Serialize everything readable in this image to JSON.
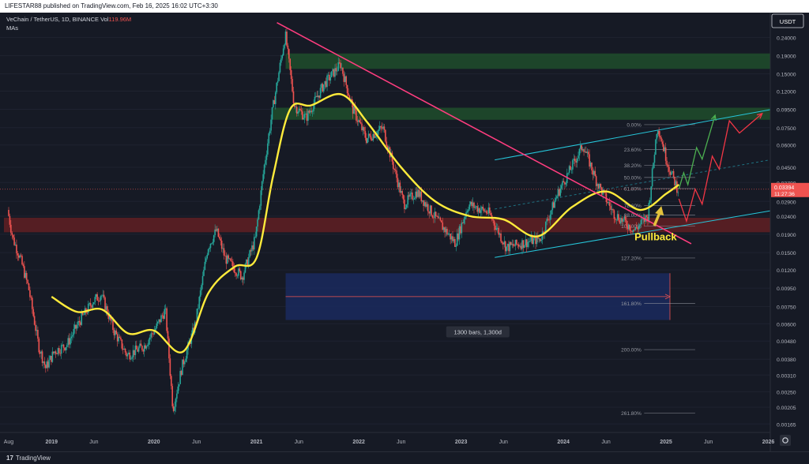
{
  "header": {
    "publisher_line": "LIFESTAR88 published on TradingView.com, Feb 16, 2025 16:02 UTC+3:30"
  },
  "legend": {
    "symbol_line": "VeChain / TetherUS, 1D, BINANCE",
    "volume_label": "Vol",
    "volume_value": "119.96M",
    "indicator_line": "MAs"
  },
  "currency_badge": "USDT",
  "footer": {
    "brand": "TradingView",
    "logo_glyph": "17"
  },
  "colors": {
    "background": "#161a25",
    "candle_up": "#26a69a",
    "candle_down": "#ef5350",
    "ma_line": "#ffeb3b",
    "trendline": "#ff3d7f",
    "channel": "#26c6da",
    "supply_zone": "#1e4d2b",
    "demand_zone": "#5c1f24",
    "measure_box": "#1a2a5e",
    "price_badge": "#ef5350",
    "arrow_green": "#4caf50",
    "arrow_red": "#f23645",
    "pullback_text": "#ffeb3b"
  },
  "chart_data": {
    "type": "candlestick",
    "title": "VeChain / TetherUS, 1D, BINANCE",
    "y_scale": "log",
    "x_tick_labels": [
      "Aug",
      "2019",
      "Jun",
      "2020",
      "Jun",
      "2021",
      "Jun",
      "2022",
      "Jun",
      "2023",
      "Jun",
      "2024",
      "Jun",
      "2025",
      "Jun",
      "2026"
    ],
    "y_tick_labels": [
      "0.24000",
      "0.19000",
      "0.15000",
      "0.12000",
      "0.09500",
      "0.07500",
      "0.06000",
      "0.04500",
      "0.03700",
      "0.02900",
      "0.02400",
      "0.01900",
      "0.01500",
      "0.01200",
      "0.00950",
      "0.00750",
      "0.00600",
      "0.00480",
      "0.00380",
      "0.00310",
      "0.00250",
      "0.00205",
      "0.00165"
    ],
    "y_tick_values": [
      0.24,
      0.19,
      0.15,
      0.12,
      0.095,
      0.075,
      0.06,
      0.045,
      0.037,
      0.029,
      0.024,
      0.019,
      0.015,
      0.012,
      0.0095,
      0.0075,
      0.006,
      0.0048,
      0.0038,
      0.0031,
      0.0025,
      0.00205,
      0.00165
    ],
    "last_price": {
      "label": "0.03394",
      "countdown": "11:27:36",
      "value": 0.03394
    },
    "price_path": [
      {
        "date": "2018-08-01",
        "price": 0.026
      },
      {
        "date": "2018-08-20",
        "price": 0.018
      },
      {
        "date": "2018-09-15",
        "price": 0.014
      },
      {
        "date": "2018-10-15",
        "price": 0.0095
      },
      {
        "date": "2018-11-20",
        "price": 0.0045
      },
      {
        "date": "2018-12-15",
        "price": 0.0034
      },
      {
        "date": "2019-01-15",
        "price": 0.0042
      },
      {
        "date": "2019-03-01",
        "price": 0.0046
      },
      {
        "date": "2019-04-15",
        "price": 0.0062
      },
      {
        "date": "2019-06-01",
        "price": 0.008
      },
      {
        "date": "2019-07-01",
        "price": 0.0088
      },
      {
        "date": "2019-08-15",
        "price": 0.0055
      },
      {
        "date": "2019-10-01",
        "price": 0.004
      },
      {
        "date": "2019-12-01",
        "price": 0.0045
      },
      {
        "date": "2020-01-15",
        "price": 0.0058
      },
      {
        "date": "2020-02-15",
        "price": 0.0072
      },
      {
        "date": "2020-03-13",
        "price": 0.002
      },
      {
        "date": "2020-04-15",
        "price": 0.0035
      },
      {
        "date": "2020-06-01",
        "price": 0.006
      },
      {
        "date": "2020-07-15",
        "price": 0.016
      },
      {
        "date": "2020-08-15",
        "price": 0.02
      },
      {
        "date": "2020-09-15",
        "price": 0.014
      },
      {
        "date": "2020-11-15",
        "price": 0.011
      },
      {
        "date": "2021-01-01",
        "price": 0.018
      },
      {
        "date": "2021-02-01",
        "price": 0.045
      },
      {
        "date": "2021-03-01",
        "price": 0.09
      },
      {
        "date": "2021-04-18",
        "price": 0.25
      },
      {
        "date": "2021-05-20",
        "price": 0.1
      },
      {
        "date": "2021-07-01",
        "price": 0.085
      },
      {
        "date": "2021-09-01",
        "price": 0.13
      },
      {
        "date": "2021-11-01",
        "price": 0.17
      },
      {
        "date": "2021-12-15",
        "price": 0.095
      },
      {
        "date": "2022-02-01",
        "price": 0.065
      },
      {
        "date": "2022-04-01",
        "price": 0.075
      },
      {
        "date": "2022-06-15",
        "price": 0.028
      },
      {
        "date": "2022-08-01",
        "price": 0.033
      },
      {
        "date": "2022-10-01",
        "price": 0.024
      },
      {
        "date": "2022-12-15",
        "price": 0.017
      },
      {
        "date": "2023-02-01",
        "price": 0.028
      },
      {
        "date": "2023-04-15",
        "price": 0.025
      },
      {
        "date": "2023-06-15",
        "price": 0.016
      },
      {
        "date": "2023-08-15",
        "price": 0.017
      },
      {
        "date": "2023-10-15",
        "price": 0.018
      },
      {
        "date": "2023-12-15",
        "price": 0.032
      },
      {
        "date": "2024-03-15",
        "price": 0.06
      },
      {
        "date": "2024-05-01",
        "price": 0.038
      },
      {
        "date": "2024-07-01",
        "price": 0.025
      },
      {
        "date": "2024-09-15",
        "price": 0.02
      },
      {
        "date": "2024-11-01",
        "price": 0.024
      },
      {
        "date": "2024-12-05",
        "price": 0.078
      },
      {
        "date": "2025-01-15",
        "price": 0.045
      },
      {
        "date": "2025-02-16",
        "price": 0.03394
      }
    ],
    "moving_average": [
      {
        "date": "2019-01-01",
        "price": 0.0085
      },
      {
        "date": "2019-04-01",
        "price": 0.007
      },
      {
        "date": "2019-07-01",
        "price": 0.0072
      },
      {
        "date": "2019-10-01",
        "price": 0.0053
      },
      {
        "date": "2020-01-01",
        "price": 0.0055
      },
      {
        "date": "2020-04-15",
        "price": 0.0042
      },
      {
        "date": "2020-07-15",
        "price": 0.009
      },
      {
        "date": "2020-10-15",
        "price": 0.0125
      },
      {
        "date": "2021-01-01",
        "price": 0.014
      },
      {
        "date": "2021-03-01",
        "price": 0.04
      },
      {
        "date": "2021-05-01",
        "price": 0.095
      },
      {
        "date": "2021-07-15",
        "price": 0.1
      },
      {
        "date": "2021-11-01",
        "price": 0.115
      },
      {
        "date": "2022-02-01",
        "price": 0.08
      },
      {
        "date": "2022-06-01",
        "price": 0.045
      },
      {
        "date": "2022-10-01",
        "price": 0.029
      },
      {
        "date": "2023-02-01",
        "price": 0.024
      },
      {
        "date": "2023-06-01",
        "price": 0.023
      },
      {
        "date": "2023-10-01",
        "price": 0.0185
      },
      {
        "date": "2024-02-01",
        "price": 0.027
      },
      {
        "date": "2024-06-01",
        "price": 0.033
      },
      {
        "date": "2024-10-01",
        "price": 0.026
      },
      {
        "date": "2025-01-01",
        "price": 0.032
      },
      {
        "date": "2025-02-16",
        "price": 0.036
      }
    ],
    "zones": [
      {
        "kind": "supply",
        "from": "2021-04-15",
        "to": "2026-01-15",
        "low": 0.16,
        "high": 0.195
      },
      {
        "kind": "supply",
        "from": "2021-03-01",
        "to": "2026-01-15",
        "low": 0.083,
        "high": 0.097
      },
      {
        "kind": "demand",
        "from": "2018-07-15",
        "to": "2026-01-15",
        "low": 0.0195,
        "high": 0.0235
      }
    ],
    "measure": {
      "from": "2021-04-15",
      "to": "2025-01-15",
      "low": 0.0063,
      "high": 0.0115,
      "label": "1300 bars, 1,300d"
    },
    "trendline": [
      {
        "date": "2021-03-15",
        "price": 0.29
      },
      {
        "date": "2025-04-01",
        "price": 0.0168
      }
    ],
    "channel": {
      "upper": [
        {
          "date": "2023-05-01",
          "price": 0.0495
        },
        {
          "date": "2026-01-15",
          "price": 0.095
        }
      ],
      "lower": [
        {
          "date": "2023-05-01",
          "price": 0.0141
        },
        {
          "date": "2026-01-15",
          "price": 0.0258
        }
      ],
      "mid": [
        {
          "date": "2023-05-01",
          "price": 0.0263
        },
        {
          "date": "2026-01-15",
          "price": 0.0498
        }
      ]
    },
    "fibonacci": {
      "from": "2024-10-15",
      "to": "2025-04-15",
      "labels_at": "2024-10-05",
      "levels": [
        {
          "label": "0.00%",
          "price": 0.078
        },
        {
          "label": "23.60%",
          "price": 0.0565
        },
        {
          "label": "38.20%",
          "price": 0.0462
        },
        {
          "label": "50.00%",
          "price": 0.0395
        },
        {
          "label": "61.80%",
          "price": 0.0342
        },
        {
          "label": "78.60%",
          "price": 0.0275
        },
        {
          "label": "88.00%",
          "price": 0.0243
        },
        {
          "label": "100.00%",
          "price": 0.0211
        },
        {
          "label": "127.20%",
          "price": 0.014
        },
        {
          "label": "161.80%",
          "price": 0.0078
        },
        {
          "label": "200.00%",
          "price": 0.0043
        },
        {
          "label": "261.80%",
          "price": 0.0019
        }
      ]
    },
    "scenario_green": [
      {
        "date": "2025-02-16",
        "price": 0.034
      },
      {
        "date": "2025-03-05",
        "price": 0.042
      },
      {
        "date": "2025-03-20",
        "price": 0.036
      },
      {
        "date": "2025-04-20",
        "price": 0.058
      },
      {
        "date": "2025-05-10",
        "price": 0.05
      },
      {
        "date": "2025-06-25",
        "price": 0.088
      }
    ],
    "scenario_red": [
      {
        "date": "2025-02-16",
        "price": 0.03
      },
      {
        "date": "2025-03-15",
        "price": 0.0225
      },
      {
        "date": "2025-04-15",
        "price": 0.034
      },
      {
        "date": "2025-05-10",
        "price": 0.028
      },
      {
        "date": "2025-06-15",
        "price": 0.052
      },
      {
        "date": "2025-07-10",
        "price": 0.044
      },
      {
        "date": "2025-08-15",
        "price": 0.082
      },
      {
        "date": "2025-09-20",
        "price": 0.07
      },
      {
        "date": "2025-12-10",
        "price": 0.09
      }
    ],
    "annotations": [
      {
        "text": "Pullback",
        "date": "2024-11-25",
        "price": 0.0187
      }
    ],
    "pullback_arrow": {
      "from": {
        "date": "2024-11-20",
        "price": 0.0212
      },
      "to": {
        "date": "2024-12-10",
        "price": 0.0265
      }
    }
  }
}
